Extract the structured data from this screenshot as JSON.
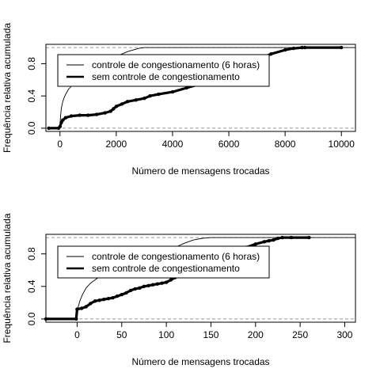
{
  "chart_data": [
    {
      "type": "line",
      "title": "",
      "xlabel": "Número de mensagens trocadas",
      "ylabel": "Frequência relativa acumulada",
      "xlim": [
        -500,
        10500
      ],
      "ylim": [
        -0.04,
        1.04
      ],
      "x_ticks": [
        0,
        2000,
        4000,
        6000,
        8000,
        10000
      ],
      "x_tick_labels": [
        "0",
        "2000",
        "4000",
        "6000",
        "8000",
        "10000"
      ],
      "y_ticks": [
        0.0,
        0.4,
        0.8
      ],
      "y_tick_labels": [
        "0.0",
        "0.4",
        "0.8"
      ],
      "reference_lines": [
        0,
        1
      ],
      "legend": {
        "position": "top-left",
        "entries": [
          "controle de congestionamento (6 horas)",
          "sem controle de congestionamento"
        ]
      },
      "series": [
        {
          "name": "controle de congestionamento (6 horas)",
          "style": "thin",
          "x": [
            -400,
            0,
            0,
            20,
            50,
            100,
            150,
            200,
            300,
            400,
            500,
            600,
            700,
            800,
            1000,
            1300,
            1600,
            2000,
            2400,
            2800,
            3000,
            10500
          ],
          "y": [
            0,
            0,
            0.05,
            0.15,
            0.25,
            0.33,
            0.38,
            0.42,
            0.48,
            0.52,
            0.55,
            0.58,
            0.61,
            0.64,
            0.7,
            0.76,
            0.82,
            0.89,
            0.95,
            0.99,
            1.0,
            1.0
          ]
        },
        {
          "name": "sem controle de congestionamento",
          "style": "thick",
          "x": [
            -400,
            -50,
            0,
            50,
            100,
            200,
            400,
            700,
            1000,
            1300,
            1600,
            1800,
            1900,
            2000,
            2200,
            2400,
            2700,
            3000,
            3200,
            3500,
            4000,
            4500,
            5000,
            5500,
            6000,
            6500,
            7000,
            7500,
            8000,
            8300,
            8600,
            8700,
            10000
          ],
          "y": [
            0,
            0,
            0.02,
            0.07,
            0.1,
            0.13,
            0.15,
            0.16,
            0.16,
            0.17,
            0.19,
            0.21,
            0.24,
            0.27,
            0.3,
            0.33,
            0.35,
            0.37,
            0.4,
            0.42,
            0.45,
            0.5,
            0.55,
            0.62,
            0.7,
            0.78,
            0.85,
            0.92,
            0.97,
            0.99,
            1.0,
            1.0,
            1.0
          ]
        }
      ]
    },
    {
      "type": "line",
      "title": "",
      "xlabel": "Número de mensagens trocadas",
      "ylabel": "Frequência relativa acumulada",
      "xlim": [
        -35,
        312
      ],
      "ylim": [
        -0.04,
        1.04
      ],
      "x_ticks": [
        0,
        50,
        100,
        150,
        200,
        250,
        300
      ],
      "x_tick_labels": [
        "0",
        "50",
        "100",
        "150",
        "200",
        "250",
        "300"
      ],
      "y_ticks": [
        0.0,
        0.4,
        0.8
      ],
      "y_tick_labels": [
        "0.0",
        "0.4",
        "0.8"
      ],
      "reference_lines": [
        0,
        1
      ],
      "legend": {
        "position": "top-left",
        "entries": [
          "controle de congestionamento (6 horas)",
          "sem controle de congestionamento"
        ]
      },
      "series": [
        {
          "name": "controle de congestionamento (6 horas)",
          "style": "thin",
          "x": [
            -35,
            0,
            0,
            3,
            6,
            10,
            15,
            20,
            25,
            30,
            40,
            50,
            60,
            70,
            80,
            90,
            100,
            110,
            120,
            130,
            140,
            150,
            312
          ],
          "y": [
            0,
            0,
            0.1,
            0.22,
            0.3,
            0.38,
            0.44,
            0.48,
            0.52,
            0.55,
            0.58,
            0.61,
            0.64,
            0.67,
            0.71,
            0.76,
            0.82,
            0.88,
            0.93,
            0.97,
            0.99,
            1.0,
            1.0
          ]
        },
        {
          "name": "sem controle de congestionamento",
          "style": "thick",
          "x": [
            -35,
            -1,
            0,
            5,
            10,
            15,
            20,
            25,
            30,
            35,
            40,
            45,
            50,
            55,
            60,
            65,
            70,
            75,
            80,
            85,
            90,
            95,
            100,
            105,
            110,
            115,
            120,
            130,
            140,
            150,
            160,
            170,
            180,
            190,
            200,
            210,
            215,
            220,
            225,
            230,
            240,
            260
          ],
          "y": [
            0,
            0,
            0.12,
            0.13,
            0.15,
            0.19,
            0.22,
            0.23,
            0.24,
            0.25,
            0.26,
            0.28,
            0.3,
            0.32,
            0.35,
            0.37,
            0.38,
            0.4,
            0.41,
            0.42,
            0.43,
            0.44,
            0.45,
            0.48,
            0.51,
            0.55,
            0.58,
            0.62,
            0.66,
            0.71,
            0.76,
            0.8,
            0.84,
            0.88,
            0.92,
            0.95,
            0.96,
            0.97,
            0.99,
            1.0,
            1.0,
            1.0
          ]
        }
      ]
    }
  ]
}
